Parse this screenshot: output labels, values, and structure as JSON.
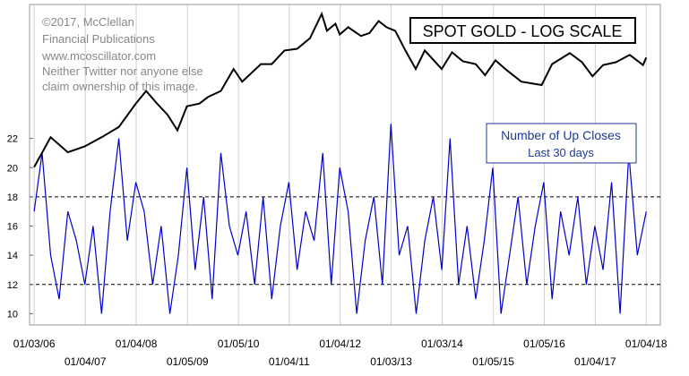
{
  "copyright": {
    "lines": [
      "©2017, McClellan",
      "Financial Publications",
      "www.mcoscillator.com",
      "Neither Twitter nor anyone else",
      "claim ownership of this image."
    ]
  },
  "colors": {
    "gold_line": "#000000",
    "up_closes_line": "#0000cc",
    "legend_text": "#1f3a93",
    "frame": "#999999",
    "grid": "#cfcfcf",
    "reference_lines": "#000000"
  },
  "chart_data": [
    {
      "type": "line",
      "title": "SPOT GOLD - LOG SCALE",
      "yscale": "log",
      "series": [
        {
          "name": "SPOT GOLD - LOG SCALE",
          "x": [
            "2006-01-03",
            "2006-05-01",
            "2006-09-01",
            "2007-01-01",
            "2007-05-01",
            "2007-09-01",
            "2008-01-01",
            "2008-03-15",
            "2008-06-01",
            "2008-08-15",
            "2008-10-25",
            "2009-01-01",
            "2009-04-01",
            "2009-06-01",
            "2009-09-01",
            "2009-12-01",
            "2010-02-01",
            "2010-06-15",
            "2010-09-01",
            "2010-12-01",
            "2011-03-01",
            "2011-06-01",
            "2011-08-25",
            "2011-10-01",
            "2011-12-01",
            "2012-01-01",
            "2012-03-01",
            "2012-06-01",
            "2012-08-01",
            "2012-10-05",
            "2012-12-01",
            "2013-02-01",
            "2013-04-15",
            "2013-06-28",
            "2013-09-01",
            "2013-12-31",
            "2014-03-15",
            "2014-06-01",
            "2014-09-01",
            "2014-11-07",
            "2015-01-20",
            "2015-04-01",
            "2015-07-24",
            "2015-12-17",
            "2016-03-01",
            "2016-07-06",
            "2016-10-01",
            "2016-12-15",
            "2017-03-01",
            "2017-06-01",
            "2017-09-08",
            "2017-12-12",
            "2018-01-04"
          ],
          "values": [
            530,
            680,
            600,
            630,
            680,
            740,
            900,
            1000,
            900,
            820,
            720,
            880,
            900,
            950,
            1000,
            1200,
            1080,
            1250,
            1250,
            1400,
            1420,
            1550,
            1900,
            1650,
            1750,
            1600,
            1700,
            1580,
            1620,
            1790,
            1700,
            1650,
            1400,
            1200,
            1400,
            1200,
            1380,
            1280,
            1250,
            1140,
            1290,
            1200,
            1080,
            1050,
            1250,
            1370,
            1270,
            1130,
            1240,
            1270,
            1350,
            1240,
            1320
          ]
        }
      ]
    },
    {
      "type": "line",
      "ylim": [
        8,
        24
      ],
      "yticks": [
        10,
        12,
        14,
        16,
        18,
        20,
        22
      ],
      "reference_lines": [
        12,
        18
      ],
      "legend": [
        "Number of Up Closes",
        "Last 30 days"
      ],
      "series": [
        {
          "name": "Number of Up Closes",
          "x": [
            "2006-01-03",
            "2006-03-01",
            "2006-05-01",
            "2006-07-01",
            "2006-09-01",
            "2006-11-01",
            "2007-01-01",
            "2007-03-01",
            "2007-05-01",
            "2007-07-01",
            "2007-09-01",
            "2007-11-01",
            "2008-01-01",
            "2008-03-01",
            "2008-05-01",
            "2008-07-01",
            "2008-09-01",
            "2008-11-01",
            "2009-01-01",
            "2009-03-01",
            "2009-05-01",
            "2009-07-01",
            "2009-09-01",
            "2009-11-01",
            "2010-01-01",
            "2010-03-01",
            "2010-05-01",
            "2010-07-01",
            "2010-09-01",
            "2010-11-01",
            "2011-01-01",
            "2011-03-01",
            "2011-05-01",
            "2011-07-01",
            "2011-09-01",
            "2011-11-01",
            "2012-01-01",
            "2012-03-01",
            "2012-05-01",
            "2012-07-01",
            "2012-09-01",
            "2012-11-01",
            "2013-01-01",
            "2013-03-01",
            "2013-05-01",
            "2013-07-01",
            "2013-09-01",
            "2013-11-01",
            "2014-01-01",
            "2014-03-01",
            "2014-05-01",
            "2014-07-01",
            "2014-09-01",
            "2014-11-01",
            "2015-01-01",
            "2015-03-01",
            "2015-05-01",
            "2015-07-01",
            "2015-09-01",
            "2015-11-01",
            "2016-01-01",
            "2016-03-01",
            "2016-05-01",
            "2016-07-01",
            "2016-09-01",
            "2016-11-01",
            "2017-01-01",
            "2017-03-01",
            "2017-05-01",
            "2017-07-01",
            "2017-09-01",
            "2017-11-01",
            "2018-01-04"
          ],
          "values": [
            17,
            21,
            14,
            11,
            17,
            15,
            12,
            16,
            10,
            17,
            22,
            15,
            19,
            17,
            12,
            16,
            10,
            14,
            20,
            13,
            18,
            11,
            21,
            16,
            14,
            17,
            12,
            18,
            11,
            16,
            19,
            13,
            17,
            15,
            21,
            12,
            20,
            17,
            10,
            15,
            18,
            12,
            23,
            14,
            16,
            10,
            15,
            18,
            13,
            22,
            12,
            16,
            11,
            15,
            20,
            10,
            14,
            18,
            12,
            16,
            19,
            11,
            17,
            14,
            18,
            12,
            16,
            13,
            19,
            10,
            21,
            14,
            17
          ]
        }
      ]
    }
  ],
  "x_axis": {
    "upper_labels": [
      "01/03/06",
      "01/04/08",
      "01/05/10",
      "01/04/12",
      "01/03/14",
      "01/05/16",
      "01/04/18"
    ],
    "lower_labels": [
      "01/04/07",
      "01/05/09",
      "01/04/11",
      "01/03/13",
      "01/05/15",
      "01/04/17"
    ]
  }
}
